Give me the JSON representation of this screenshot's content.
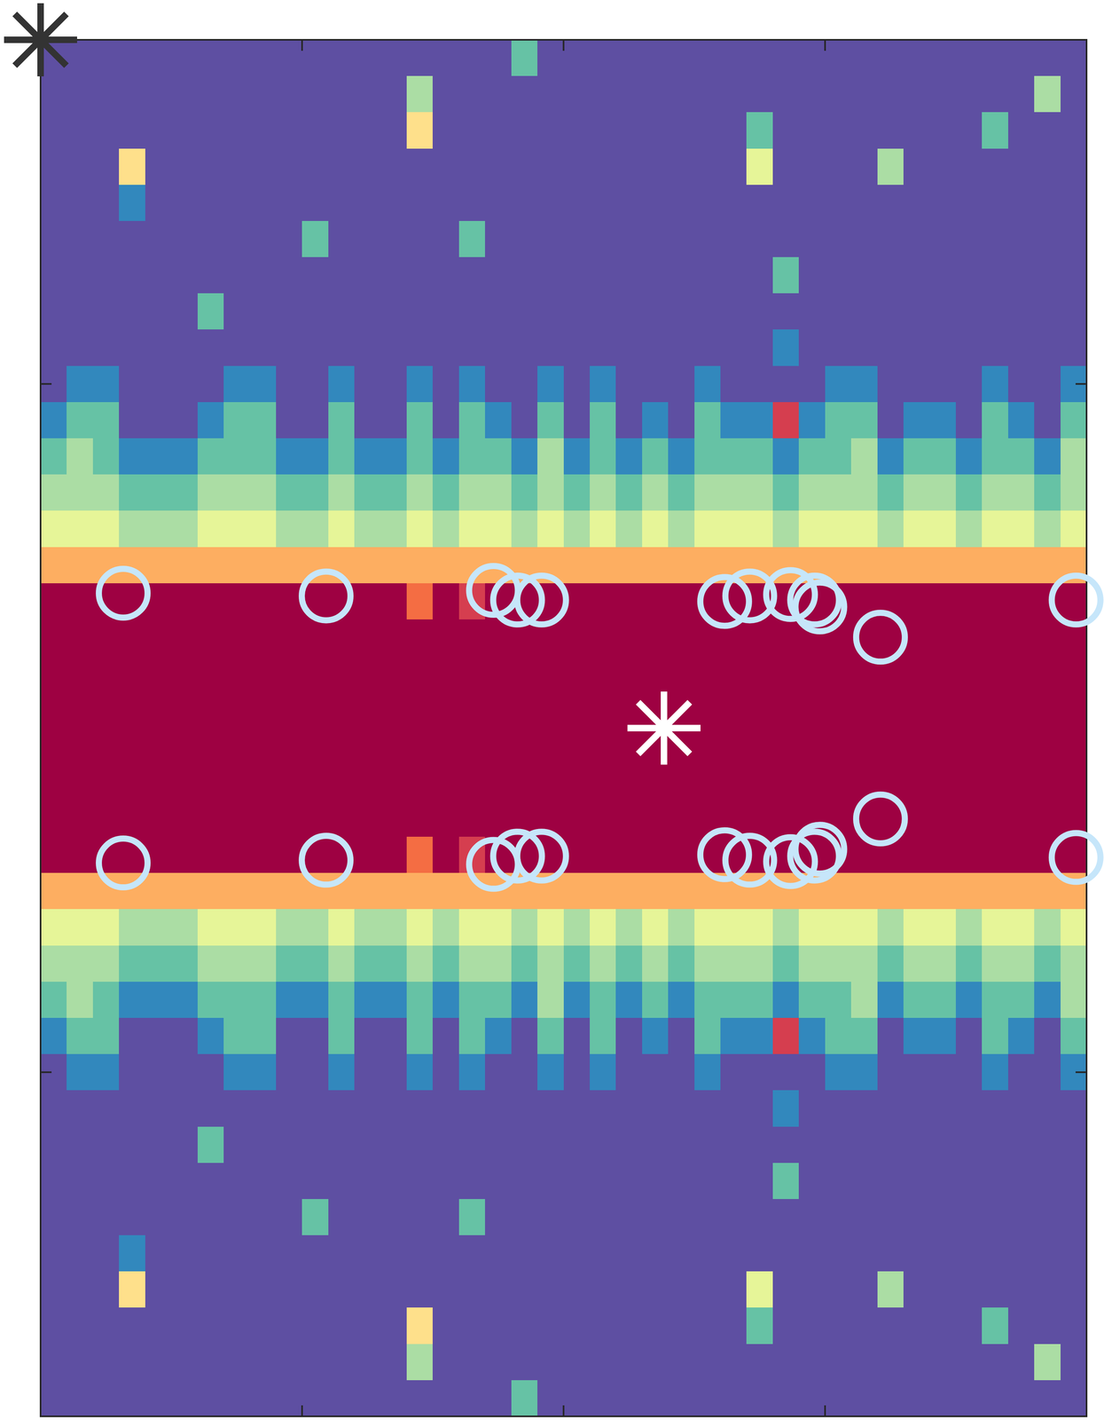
{
  "chart_data": {
    "type": "heatmap",
    "xlim": [
      0,
      1
    ],
    "ylim": [
      0,
      1
    ],
    "xticks": [
      0.25,
      0.5,
      0.75
    ],
    "yticks": [
      0.25,
      0.75
    ],
    "tick_labels": false,
    "color_range": [
      0,
      9
    ],
    "cells": [
      [
        0,
        0,
        0,
        0,
        0,
        0,
        0,
        0,
        0,
        0,
        0,
        0,
        0,
        0,
        0,
        0,
        0,
        0,
        2,
        0,
        0,
        0,
        0,
        0,
        0,
        0,
        0,
        0,
        0,
        0,
        0,
        0,
        0,
        0,
        0,
        0,
        0,
        0,
        0,
        0
      ],
      [
        0,
        0,
        0,
        0,
        0,
        0,
        0,
        0,
        0,
        0,
        0,
        0,
        0,
        0,
        3,
        0,
        0,
        0,
        0,
        0,
        0,
        0,
        0,
        0,
        0,
        0,
        0,
        0,
        0,
        0,
        0,
        0,
        0,
        0,
        0,
        0,
        0,
        0,
        3,
        0
      ],
      [
        0,
        0,
        0,
        0,
        0,
        0,
        0,
        0,
        0,
        0,
        0,
        0,
        0,
        0,
        5,
        0,
        0,
        0,
        0,
        0,
        0,
        0,
        0,
        0,
        0,
        0,
        0,
        2,
        0,
        0,
        0,
        0,
        0,
        0,
        0,
        0,
        2,
        0,
        0,
        0
      ],
      [
        0,
        0,
        0,
        5,
        0,
        0,
        0,
        0,
        0,
        0,
        0,
        0,
        0,
        0,
        0,
        0,
        0,
        0,
        0,
        0,
        0,
        0,
        0,
        0,
        0,
        0,
        0,
        4,
        0,
        0,
        0,
        0,
        3,
        0,
        0,
        0,
        0,
        0,
        0,
        0
      ],
      [
        0,
        0,
        0,
        1,
        0,
        0,
        0,
        0,
        0,
        0,
        0,
        0,
        0,
        0,
        0,
        0,
        0,
        0,
        0,
        0,
        0,
        0,
        0,
        0,
        0,
        0,
        0,
        0,
        0,
        0,
        0,
        0,
        0,
        0,
        0,
        0,
        0,
        0,
        0,
        0
      ],
      [
        0,
        0,
        0,
        0,
        0,
        0,
        0,
        0,
        0,
        0,
        2,
        0,
        0,
        0,
        0,
        0,
        2,
        0,
        0,
        0,
        0,
        0,
        0,
        0,
        0,
        0,
        0,
        0,
        0,
        0,
        0,
        0,
        0,
        0,
        0,
        0,
        0,
        0,
        0,
        0
      ],
      [
        0,
        0,
        0,
        0,
        0,
        0,
        0,
        0,
        0,
        0,
        0,
        0,
        0,
        0,
        0,
        0,
        0,
        0,
        0,
        0,
        0,
        0,
        0,
        0,
        0,
        0,
        0,
        0,
        2,
        0,
        0,
        0,
        0,
        0,
        0,
        0,
        0,
        0,
        0,
        0
      ],
      [
        0,
        0,
        0,
        0,
        0,
        0,
        2,
        0,
        0,
        0,
        0,
        0,
        0,
        0,
        0,
        0,
        0,
        0,
        0,
        0,
        0,
        0,
        0,
        0,
        0,
        0,
        0,
        0,
        0,
        0,
        0,
        0,
        0,
        0,
        0,
        0,
        0,
        0,
        0,
        0
      ],
      [
        0,
        0,
        0,
        0,
        0,
        0,
        0,
        0,
        0,
        0,
        0,
        0,
        0,
        0,
        0,
        0,
        0,
        0,
        0,
        0,
        0,
        0,
        0,
        0,
        0,
        0,
        0,
        0,
        1,
        0,
        0,
        0,
        0,
        0,
        0,
        0,
        0,
        0,
        0,
        0
      ],
      [
        0,
        1,
        1,
        0,
        0,
        0,
        0,
        1,
        1,
        0,
        0,
        1,
        0,
        0,
        1,
        0,
        1,
        0,
        0,
        1,
        0,
        1,
        0,
        0,
        0,
        1,
        0,
        0,
        0,
        0,
        1,
        1,
        0,
        0,
        0,
        0,
        1,
        0,
        0,
        1
      ],
      [
        1,
        2,
        2,
        0,
        0,
        0,
        1,
        2,
        2,
        0,
        0,
        2,
        0,
        0,
        2,
        0,
        2,
        1,
        0,
        2,
        0,
        2,
        0,
        1,
        0,
        2,
        1,
        1,
        8,
        1,
        2,
        2,
        0,
        1,
        1,
        0,
        2,
        1,
        0,
        2
      ],
      [
        2,
        3,
        2,
        1,
        1,
        1,
        2,
        2,
        2,
        1,
        1,
        2,
        1,
        1,
        2,
        1,
        2,
        2,
        1,
        3,
        1,
        2,
        1,
        2,
        1,
        2,
        2,
        2,
        1,
        2,
        2,
        3,
        1,
        2,
        2,
        1,
        2,
        2,
        1,
        3
      ],
      [
        3,
        3,
        3,
        2,
        2,
        2,
        3,
        3,
        3,
        2,
        2,
        3,
        2,
        2,
        3,
        2,
        3,
        3,
        2,
        3,
        2,
        3,
        2,
        3,
        2,
        3,
        3,
        3,
        2,
        3,
        3,
        3,
        2,
        3,
        3,
        2,
        3,
        3,
        2,
        3
      ],
      [
        4,
        4,
        4,
        3,
        3,
        3,
        4,
        4,
        4,
        3,
        3,
        4,
        3,
        3,
        4,
        3,
        4,
        4,
        3,
        4,
        3,
        4,
        3,
        4,
        3,
        4,
        4,
        4,
        3,
        4,
        4,
        4,
        3,
        4,
        4,
        3,
        4,
        4,
        3,
        4
      ],
      [
        6,
        6,
        6,
        6,
        6,
        6,
        6,
        6,
        6,
        6,
        6,
        6,
        6,
        6,
        6,
        6,
        6,
        6,
        6,
        6,
        6,
        6,
        6,
        6,
        6,
        6,
        6,
        6,
        6,
        6,
        6,
        6,
        6,
        6,
        6,
        6,
        6,
        6,
        6,
        6
      ],
      [
        9,
        9,
        9,
        9,
        9,
        9,
        9,
        9,
        9,
        9,
        9,
        9,
        9,
        9,
        7,
        9,
        8,
        9,
        9,
        9,
        9,
        9,
        9,
        9,
        9,
        9,
        9,
        9,
        9,
        9,
        9,
        9,
        9,
        9,
        9,
        9,
        9,
        9,
        9,
        9
      ],
      [
        9,
        9,
        9,
        9,
        9,
        9,
        9,
        9,
        9,
        9,
        9,
        9,
        9,
        9,
        9,
        9,
        9,
        9,
        9,
        9,
        9,
        9,
        9,
        9,
        9,
        9,
        9,
        9,
        9,
        9,
        9,
        9,
        9,
        9,
        9,
        9,
        9,
        9,
        9,
        9
      ],
      [
        9,
        9,
        9,
        9,
        9,
        9,
        9,
        9,
        9,
        9,
        9,
        9,
        9,
        9,
        9,
        9,
        9,
        9,
        9,
        9,
        9,
        9,
        9,
        9,
        9,
        9,
        9,
        9,
        9,
        9,
        9,
        9,
        9,
        9,
        9,
        9,
        9,
        9,
        9,
        9
      ],
      [
        9,
        9,
        9,
        9,
        9,
        9,
        9,
        9,
        9,
        9,
        9,
        9,
        9,
        9,
        9,
        9,
        9,
        9,
        9,
        9,
        9,
        9,
        9,
        9,
        9,
        9,
        9,
        9,
        9,
        9,
        9,
        9,
        9,
        9,
        9,
        9,
        9,
        9,
        9,
        9
      ],
      [
        9,
        9,
        9,
        9,
        9,
        9,
        9,
        9,
        9,
        9,
        9,
        9,
        9,
        9,
        9,
        9,
        9,
        9,
        9,
        9,
        9,
        9,
        9,
        9,
        9,
        9,
        9,
        9,
        9,
        9,
        9,
        9,
        9,
        9,
        9,
        9,
        9,
        9,
        9,
        9
      ],
      [
        9,
        9,
        9,
        9,
        9,
        9,
        9,
        9,
        9,
        9,
        9,
        9,
        9,
        9,
        9,
        9,
        9,
        9,
        9,
        9,
        9,
        9,
        9,
        9,
        9,
        9,
        9,
        9,
        9,
        9,
        9,
        9,
        9,
        9,
        9,
        9,
        9,
        9,
        9,
        9
      ],
      [
        9,
        9,
        9,
        9,
        9,
        9,
        9,
        9,
        9,
        9,
        9,
        9,
        9,
        9,
        9,
        9,
        9,
        9,
        9,
        9,
        9,
        9,
        9,
        9,
        9,
        9,
        9,
        9,
        9,
        9,
        9,
        9,
        9,
        9,
        9,
        9,
        9,
        9,
        9,
        9
      ],
      [
        9,
        9,
        9,
        9,
        9,
        9,
        9,
        9,
        9,
        9,
        9,
        9,
        9,
        9,
        7,
        9,
        8,
        9,
        9,
        9,
        9,
        9,
        9,
        9,
        9,
        9,
        9,
        9,
        9,
        9,
        9,
        9,
        9,
        9,
        9,
        9,
        9,
        9,
        9,
        9
      ],
      [
        6,
        6,
        6,
        6,
        6,
        6,
        6,
        6,
        6,
        6,
        6,
        6,
        6,
        6,
        6,
        6,
        6,
        6,
        6,
        6,
        6,
        6,
        6,
        6,
        6,
        6,
        6,
        6,
        6,
        6,
        6,
        6,
        6,
        6,
        6,
        6,
        6,
        6,
        6,
        6
      ],
      [
        4,
        4,
        4,
        3,
        3,
        3,
        4,
        4,
        4,
        3,
        3,
        4,
        3,
        3,
        4,
        3,
        4,
        4,
        3,
        4,
        3,
        4,
        3,
        4,
        3,
        4,
        4,
        4,
        3,
        4,
        4,
        4,
        3,
        4,
        4,
        3,
        4,
        4,
        3,
        4
      ],
      [
        3,
        3,
        3,
        2,
        2,
        2,
        3,
        3,
        3,
        2,
        2,
        3,
        2,
        2,
        3,
        2,
        3,
        3,
        2,
        3,
        2,
        3,
        2,
        3,
        2,
        3,
        3,
        3,
        2,
        3,
        3,
        3,
        2,
        3,
        3,
        2,
        3,
        3,
        2,
        3
      ],
      [
        2,
        3,
        2,
        1,
        1,
        1,
        2,
        2,
        2,
        1,
        1,
        2,
        1,
        1,
        2,
        1,
        2,
        2,
        1,
        3,
        1,
        2,
        1,
        2,
        1,
        2,
        2,
        2,
        1,
        2,
        2,
        3,
        1,
        2,
        2,
        1,
        2,
        2,
        1,
        3
      ],
      [
        1,
        2,
        2,
        0,
        0,
        0,
        1,
        2,
        2,
        0,
        0,
        2,
        0,
        0,
        2,
        0,
        2,
        1,
        0,
        2,
        0,
        2,
        0,
        1,
        0,
        2,
        1,
        1,
        8,
        1,
        2,
        2,
        0,
        1,
        1,
        0,
        2,
        1,
        0,
        2
      ],
      [
        0,
        1,
        1,
        0,
        0,
        0,
        0,
        1,
        1,
        0,
        0,
        1,
        0,
        0,
        1,
        0,
        1,
        0,
        0,
        1,
        0,
        1,
        0,
        0,
        0,
        1,
        0,
        0,
        0,
        0,
        1,
        1,
        0,
        0,
        0,
        0,
        1,
        0,
        0,
        1
      ],
      [
        0,
        0,
        0,
        0,
        0,
        0,
        0,
        0,
        0,
        0,
        0,
        0,
        0,
        0,
        0,
        0,
        0,
        0,
        0,
        0,
        0,
        0,
        0,
        0,
        0,
        0,
        0,
        0,
        1,
        0,
        0,
        0,
        0,
        0,
        0,
        0,
        0,
        0,
        0,
        0
      ],
      [
        0,
        0,
        0,
        0,
        0,
        0,
        2,
        0,
        0,
        0,
        0,
        0,
        0,
        0,
        0,
        0,
        0,
        0,
        0,
        0,
        0,
        0,
        0,
        0,
        0,
        0,
        0,
        0,
        0,
        0,
        0,
        0,
        0,
        0,
        0,
        0,
        0,
        0,
        0,
        0
      ],
      [
        0,
        0,
        0,
        0,
        0,
        0,
        0,
        0,
        0,
        0,
        0,
        0,
        0,
        0,
        0,
        0,
        0,
        0,
        0,
        0,
        0,
        0,
        0,
        0,
        0,
        0,
        0,
        0,
        2,
        0,
        0,
        0,
        0,
        0,
        0,
        0,
        0,
        0,
        0,
        0
      ],
      [
        0,
        0,
        0,
        0,
        0,
        0,
        0,
        0,
        0,
        0,
        2,
        0,
        0,
        0,
        0,
        0,
        2,
        0,
        0,
        0,
        0,
        0,
        0,
        0,
        0,
        0,
        0,
        0,
        0,
        0,
        0,
        0,
        0,
        0,
        0,
        0,
        0,
        0,
        0,
        0
      ],
      [
        0,
        0,
        0,
        1,
        0,
        0,
        0,
        0,
        0,
        0,
        0,
        0,
        0,
        0,
        0,
        0,
        0,
        0,
        0,
        0,
        0,
        0,
        0,
        0,
        0,
        0,
        0,
        0,
        0,
        0,
        0,
        0,
        0,
        0,
        0,
        0,
        0,
        0,
        0,
        0
      ],
      [
        0,
        0,
        0,
        5,
        0,
        0,
        0,
        0,
        0,
        0,
        0,
        0,
        0,
        0,
        0,
        0,
        0,
        0,
        0,
        0,
        0,
        0,
        0,
        0,
        0,
        0,
        0,
        4,
        0,
        0,
        0,
        0,
        3,
        0,
        0,
        0,
        0,
        0,
        0,
        0
      ],
      [
        0,
        0,
        0,
        0,
        0,
        0,
        0,
        0,
        0,
        0,
        0,
        0,
        0,
        0,
        5,
        0,
        0,
        0,
        0,
        0,
        0,
        0,
        0,
        0,
        0,
        0,
        0,
        2,
        0,
        0,
        0,
        0,
        0,
        0,
        0,
        0,
        2,
        0,
        0,
        0
      ],
      [
        0,
        0,
        0,
        0,
        0,
        0,
        0,
        0,
        0,
        0,
        0,
        0,
        0,
        0,
        3,
        0,
        0,
        0,
        0,
        0,
        0,
        0,
        0,
        0,
        0,
        0,
        0,
        0,
        0,
        0,
        0,
        0,
        0,
        0,
        0,
        0,
        0,
        0,
        3,
        0
      ],
      [
        0,
        0,
        0,
        0,
        0,
        0,
        0,
        0,
        0,
        0,
        0,
        0,
        0,
        0,
        0,
        0,
        0,
        0,
        2,
        0,
        0,
        0,
        0,
        0,
        0,
        0,
        0,
        0,
        0,
        0,
        0,
        0,
        0,
        0,
        0,
        0,
        0,
        0,
        0,
        0
      ]
    ],
    "series": [
      {
        "type": "scatter",
        "marker": "circle",
        "color": "#c6e6fa",
        "x": [
          0.079,
          0.273,
          0.433,
          0.456,
          0.479,
          0.654,
          0.678,
          0.717,
          0.74,
          0.745,
          0.803,
          0.99,
          0.079,
          0.273,
          0.433,
          0.456,
          0.479,
          0.654,
          0.678,
          0.717,
          0.74,
          0.745,
          0.803,
          0.99
        ],
        "values": [
          0.598,
          0.596,
          0.6,
          0.593,
          0.593,
          0.592,
          0.596,
          0.597,
          0.593,
          0.588,
          0.566,
          0.593,
          0.402,
          0.404,
          0.401,
          0.407,
          0.407,
          0.408,
          0.404,
          0.403,
          0.407,
          0.412,
          0.434,
          0.406
        ]
      },
      {
        "type": "scatter",
        "marker": "asterisk",
        "color": "#ffffff",
        "x": [
          0.596
        ],
        "values": [
          0.5
        ]
      },
      {
        "type": "scatter",
        "marker": "asterisk",
        "color": "#333333",
        "x": [
          0
        ],
        "values": [
          1
        ]
      }
    ]
  }
}
